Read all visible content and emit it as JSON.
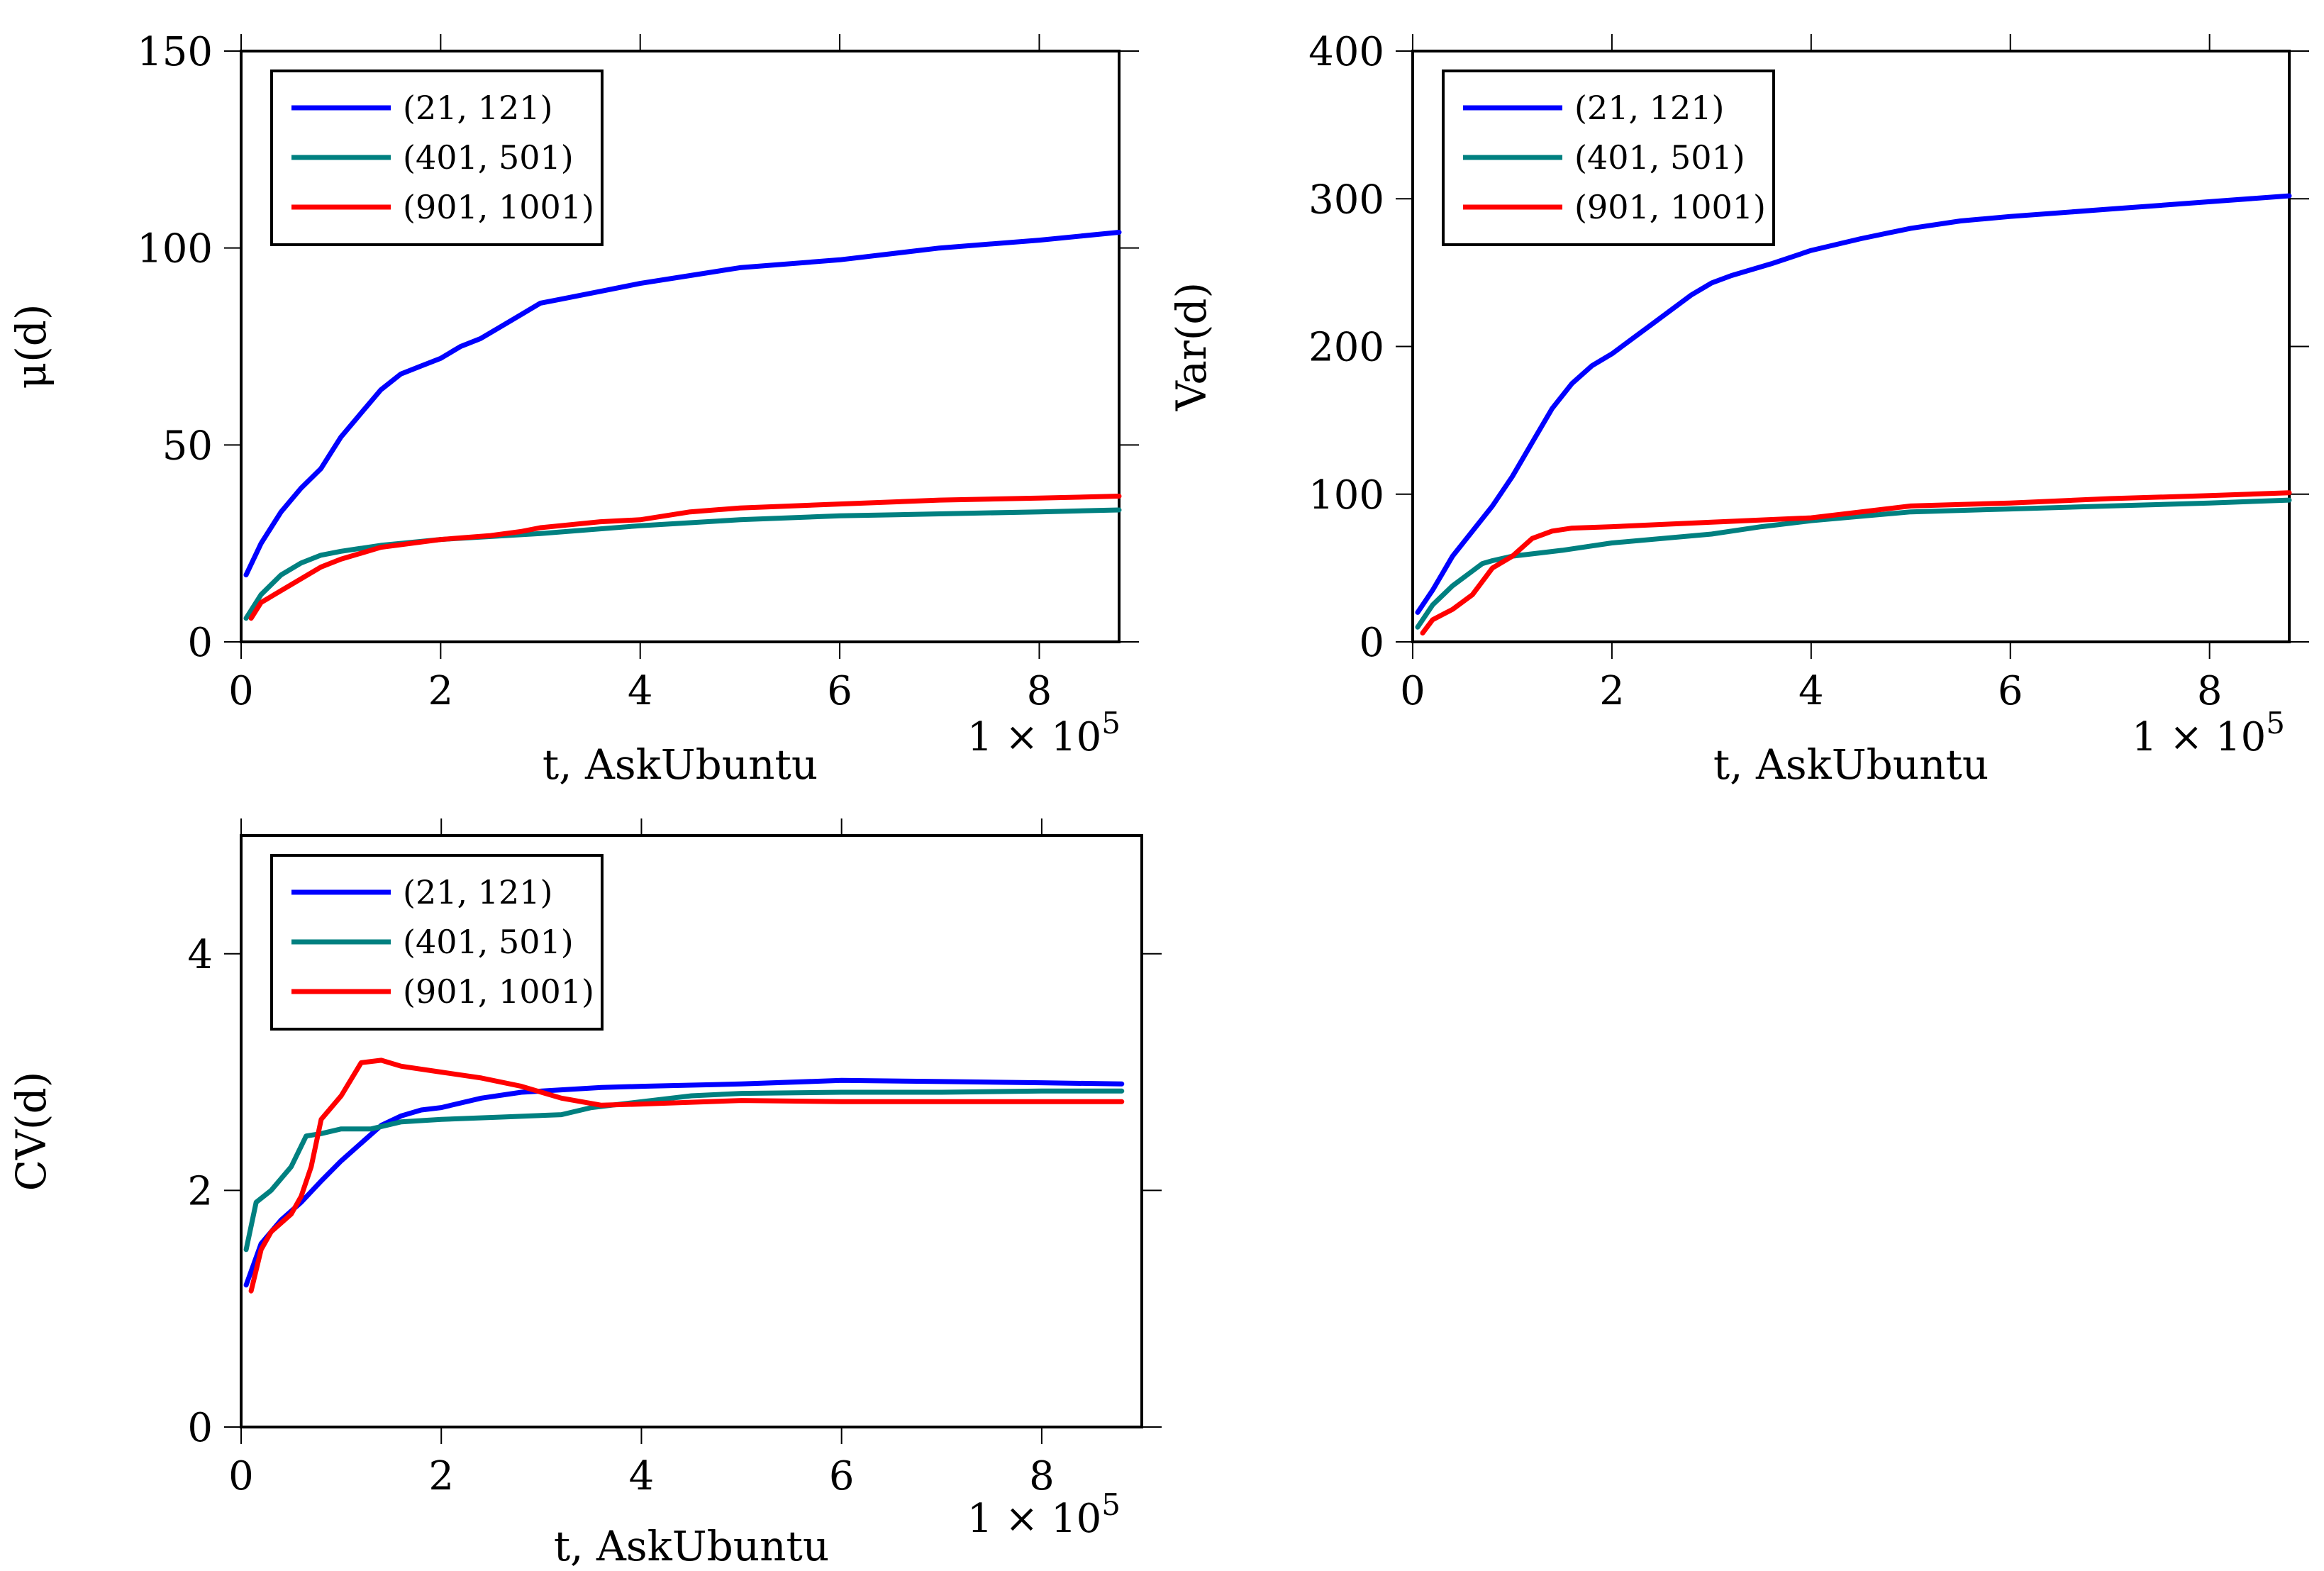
{
  "chart_data": [
    {
      "type": "line",
      "xlabel": "t, AskUbuntu",
      "ylabel": "μ(d)",
      "x_multiplier": "1 × 10",
      "x_multiplier_exp": "5",
      "xlim": [
        0,
        8.8
      ],
      "ylim": [
        0,
        150
      ],
      "xticks": [
        0,
        2,
        4,
        6,
        8
      ],
      "yticks": [
        0,
        50,
        100,
        150
      ],
      "legend_position": "top-left",
      "series": [
        {
          "name": "(21, 121)",
          "color": "#0000ff",
          "x": [
            0.05,
            0.2,
            0.4,
            0.6,
            0.8,
            1.0,
            1.2,
            1.4,
            1.6,
            1.8,
            2.0,
            2.2,
            2.4,
            2.6,
            2.8,
            3.0,
            3.2,
            3.6,
            4.0,
            4.5,
            5.0,
            6.0,
            7.0,
            8.0,
            8.8
          ],
          "y": [
            17,
            25,
            33,
            39,
            44,
            52,
            58,
            64,
            68,
            70,
            72,
            75,
            77,
            80,
            83,
            86,
            87,
            89,
            91,
            93,
            95,
            97,
            100,
            102,
            104
          ]
        },
        {
          "name": "(401, 501)",
          "color": "#008080",
          "x": [
            0.05,
            0.2,
            0.4,
            0.6,
            0.8,
            1.0,
            1.4,
            2.0,
            3.0,
            4.0,
            5.0,
            6.0,
            7.0,
            8.0,
            8.8
          ],
          "y": [
            6,
            12,
            17,
            20,
            22,
            23,
            24.5,
            26,
            27.5,
            29.5,
            31,
            32,
            32.5,
            33,
            33.5
          ]
        },
        {
          "name": "(901, 1001)",
          "color": "#ff0000",
          "x": [
            0.1,
            0.2,
            0.4,
            0.6,
            0.8,
            1.0,
            1.4,
            2.0,
            2.5,
            2.8,
            3.0,
            3.2,
            3.6,
            4.0,
            4.5,
            5.0,
            6.0,
            7.0,
            8.0,
            8.8
          ],
          "y": [
            6,
            10,
            13,
            16,
            19,
            21,
            24,
            26,
            27,
            28,
            29,
            29.5,
            30.5,
            31,
            33,
            34,
            35,
            36,
            36.5,
            37
          ]
        }
      ]
    },
    {
      "type": "line",
      "xlabel": "t, AskUbuntu",
      "ylabel": "Var(d)",
      "x_multiplier": "1 × 10",
      "x_multiplier_exp": "5",
      "xlim": [
        0,
        8.8
      ],
      "ylim": [
        0,
        400
      ],
      "xticks": [
        0,
        2,
        4,
        6,
        8
      ],
      "yticks": [
        0,
        100,
        200,
        300,
        400
      ],
      "legend_position": "top-left",
      "series": [
        {
          "name": "(21, 121)",
          "color": "#0000ff",
          "x": [
            0.05,
            0.2,
            0.4,
            0.6,
            0.8,
            1.0,
            1.2,
            1.4,
            1.6,
            1.8,
            2.0,
            2.2,
            2.4,
            2.6,
            2.8,
            3.0,
            3.2,
            3.6,
            4.0,
            4.5,
            5.0,
            5.5,
            6.0,
            7.0,
            8.0,
            8.8
          ],
          "y": [
            20,
            35,
            58,
            75,
            92,
            112,
            135,
            158,
            175,
            187,
            195,
            205,
            215,
            225,
            235,
            243,
            248,
            256,
            265,
            273,
            280,
            285,
            288,
            293,
            298,
            302
          ]
        },
        {
          "name": "(401, 501)",
          "color": "#008080",
          "x": [
            0.05,
            0.2,
            0.4,
            0.6,
            0.7,
            0.8,
            1.0,
            1.5,
            2.0,
            3.0,
            3.5,
            4.0,
            5.0,
            6.0,
            7.0,
            8.0,
            8.8
          ],
          "y": [
            10,
            25,
            38,
            48,
            53,
            55,
            58,
            62,
            67,
            73,
            78,
            82,
            88,
            90,
            92,
            94,
            96
          ]
        },
        {
          "name": "(901, 1001)",
          "color": "#ff0000",
          "x": [
            0.1,
            0.2,
            0.4,
            0.6,
            0.8,
            1.0,
            1.2,
            1.4,
            1.6,
            2.0,
            3.0,
            4.0,
            5.0,
            6.0,
            7.0,
            8.0,
            8.8
          ],
          "y": [
            6,
            15,
            22,
            32,
            50,
            58,
            70,
            75,
            77,
            78,
            81,
            84,
            92,
            94,
            97,
            99,
            101
          ]
        }
      ]
    },
    {
      "type": "line",
      "xlabel": "t, AskUbuntu",
      "ylabel": "CV(d)",
      "x_multiplier": "1 × 10",
      "x_multiplier_exp": "5",
      "xlim": [
        0,
        9
      ],
      "ylim": [
        0,
        5
      ],
      "xticks": [
        0,
        2,
        4,
        6,
        8
      ],
      "yticks": [
        0,
        2,
        4
      ],
      "legend_position": "top-left",
      "series": [
        {
          "name": "(21, 121)",
          "color": "#0000ff",
          "x": [
            0.05,
            0.2,
            0.4,
            0.6,
            0.8,
            1.0,
            1.2,
            1.4,
            1.6,
            1.8,
            2.0,
            2.4,
            2.8,
            3.2,
            3.6,
            4.0,
            5.0,
            6.0,
            7.0,
            8.0,
            8.8
          ],
          "y": [
            1.2,
            1.55,
            1.75,
            1.9,
            2.08,
            2.25,
            2.4,
            2.55,
            2.63,
            2.68,
            2.7,
            2.78,
            2.83,
            2.85,
            2.87,
            2.88,
            2.9,
            2.93,
            2.92,
            2.91,
            2.9
          ]
        },
        {
          "name": "(401, 501)",
          "color": "#008080",
          "x": [
            0.05,
            0.15,
            0.3,
            0.5,
            0.65,
            0.8,
            1.0,
            1.3,
            1.6,
            2.0,
            2.6,
            3.2,
            3.5,
            4.0,
            4.5,
            5.0,
            6.0,
            7.0,
            8.0,
            8.8
          ],
          "y": [
            1.5,
            1.9,
            2.0,
            2.2,
            2.46,
            2.48,
            2.52,
            2.52,
            2.58,
            2.6,
            2.62,
            2.64,
            2.7,
            2.75,
            2.8,
            2.82,
            2.83,
            2.83,
            2.84,
            2.84
          ]
        },
        {
          "name": "(901, 1001)",
          "color": "#ff0000",
          "x": [
            0.1,
            0.2,
            0.3,
            0.5,
            0.6,
            0.7,
            0.8,
            1.0,
            1.2,
            1.4,
            1.6,
            2.0,
            2.4,
            2.8,
            3.2,
            3.6,
            4.0,
            5.0,
            6.0,
            7.0,
            8.0,
            8.8
          ],
          "y": [
            1.15,
            1.5,
            1.65,
            1.8,
            1.95,
            2.2,
            2.6,
            2.8,
            3.08,
            3.1,
            3.05,
            3.0,
            2.95,
            2.88,
            2.78,
            2.72,
            2.73,
            2.76,
            2.75,
            2.75,
            2.75,
            2.75
          ]
        }
      ]
    }
  ]
}
